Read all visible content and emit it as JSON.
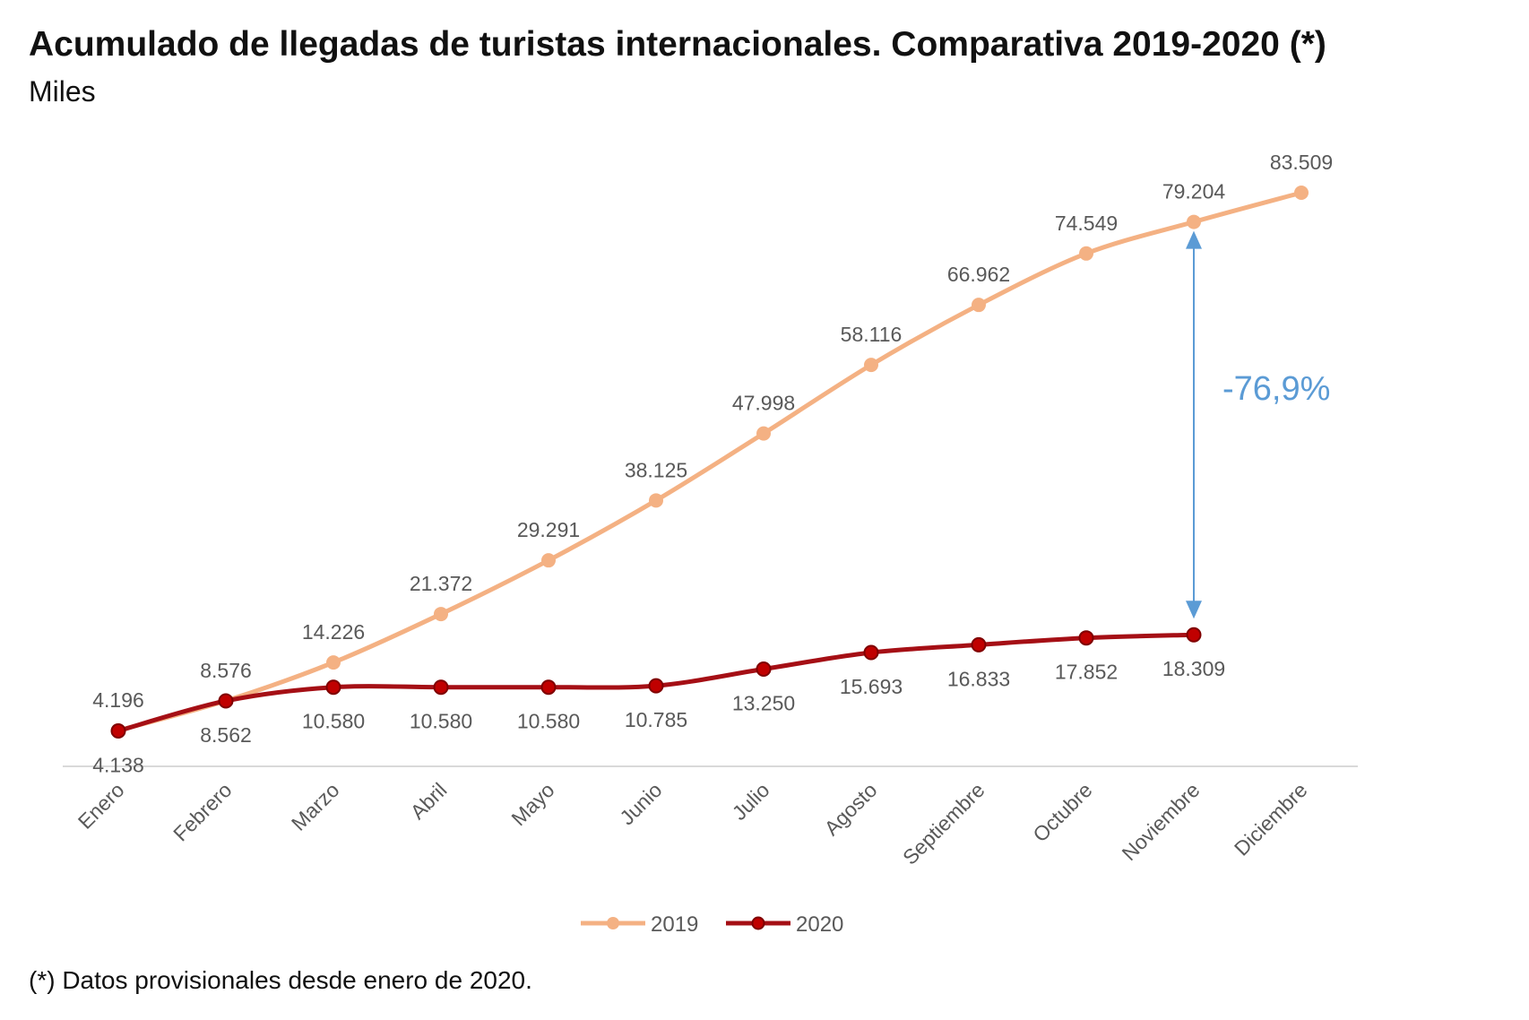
{
  "title": "Acumulado de llegadas de turistas internacionales. Comparativa 2019-2020 (*)",
  "subtitle": "Miles",
  "footnote": "(*) Datos provisionales desde enero de 2020.",
  "colors": {
    "s2019": "#f4b183",
    "s2020": "#c00000",
    "s2020_line": "#a50f15",
    "annotation": "#5b9bd5",
    "axis": "#d9d9d9"
  },
  "chart_data": {
    "type": "line",
    "categories": [
      "Enero",
      "Febrero",
      "Marzo",
      "Abril",
      "Mayo",
      "Junio",
      "Julio",
      "Agosto",
      "Septiembre",
      "Octubre",
      "Noviembre",
      "Diciembre"
    ],
    "series": [
      {
        "name": "2019",
        "values": [
          4196,
          8576,
          14226,
          21372,
          29291,
          38125,
          47998,
          58116,
          66962,
          74549,
          79204,
          83509
        ],
        "labels": [
          "4.196",
          "8.576",
          "14.226",
          "21.372",
          "29.291",
          "38.125",
          "47.998",
          "58.116",
          "66.962",
          "74.549",
          "79.204",
          "83.509"
        ]
      },
      {
        "name": "2020",
        "values": [
          4138,
          8562,
          10580,
          10580,
          10580,
          10785,
          13250,
          15693,
          16833,
          17852,
          18309,
          null
        ],
        "labels": [
          "4.138",
          "8.562",
          "10.580",
          "10.580",
          "10.580",
          "10.785",
          "13.250",
          "15.693",
          "16.833",
          "17.852",
          "18.309",
          ""
        ]
      }
    ],
    "ylim": [
      0,
      90000
    ],
    "grid": false,
    "legend": "bottom",
    "annotation": {
      "text": "-76,9%",
      "category": "Noviembre",
      "from": 79204,
      "to": 18309
    }
  }
}
